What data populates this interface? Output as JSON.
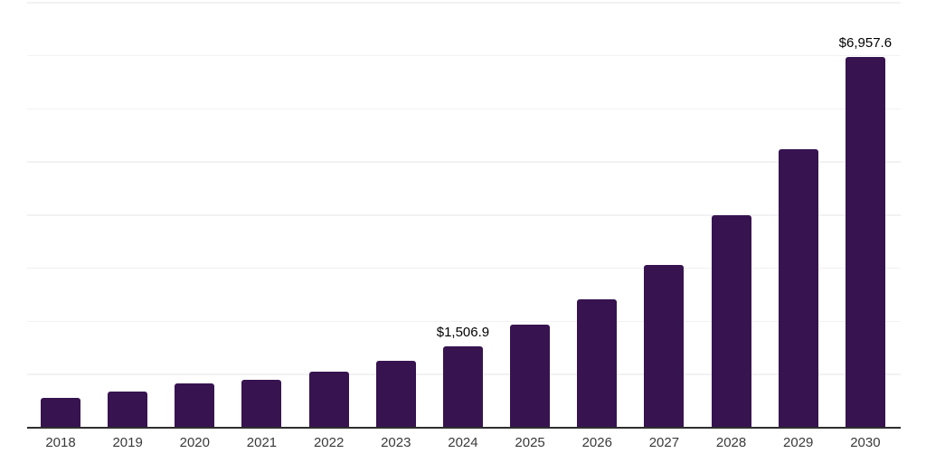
{
  "chart_data": {
    "type": "bar",
    "title": "",
    "xlabel": "",
    "ylabel": "",
    "categories": [
      "2018",
      "2019",
      "2020",
      "2021",
      "2022",
      "2023",
      "2024",
      "2025",
      "2026",
      "2027",
      "2028",
      "2029",
      "2030"
    ],
    "values": [
      550,
      665,
      815,
      885,
      1040,
      1240,
      1506.9,
      1920,
      2400,
      3050,
      3975,
      5225,
      6957.6
    ],
    "value_labels": [
      "",
      "",
      "",
      "",
      "",
      "",
      "$1,506.9",
      "",
      "",
      "",
      "",
      "",
      "$6,957.6"
    ],
    "annotations": [
      {
        "category": "2024",
        "text": "$1,506.9"
      },
      {
        "category": "2030",
        "text": "$6,957.6"
      }
    ],
    "ylim": [
      0,
      8000
    ],
    "gridline_step": 1000,
    "grid": "horizontal-only",
    "y_axis_labels_visible": false,
    "legend": "none"
  },
  "style": {
    "background": "#ffffff",
    "bar_color": "#371350",
    "gridline_color": "#f2f2f4",
    "axis_line_color": "#2e2e2e",
    "tick_label_color": "#3a3a3a",
    "value_label_color": "#000000"
  }
}
